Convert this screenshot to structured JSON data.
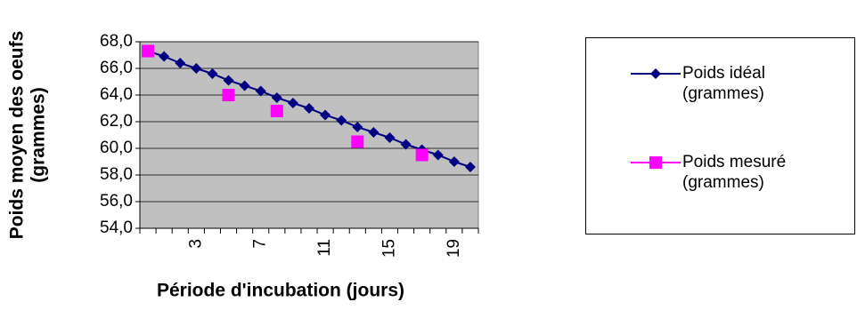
{
  "chart_data": {
    "type": "line",
    "xlabel": "Période d'incubation (jours)",
    "ylabel": [
      "Poids moyen des oeufs",
      "(grammes)"
    ],
    "categories": [
      null,
      null,
      null,
      "3",
      null,
      null,
      null,
      "7",
      null,
      null,
      null,
      "11",
      null,
      null,
      null,
      "15",
      null,
      null,
      null,
      "19",
      null
    ],
    "series": [
      {
        "name": "Poids idéal (grammes)",
        "color": "#000080",
        "marker": "diamond",
        "values": [
          67.3,
          66.9,
          66.4,
          66.0,
          65.6,
          65.1,
          64.7,
          64.3,
          63.8,
          63.4,
          63.0,
          62.5,
          62.1,
          61.6,
          61.2,
          60.8,
          60.3,
          59.9,
          59.5,
          59.0,
          58.6
        ]
      },
      {
        "name": "Poids mesuré (grammes)",
        "color": "#ff00ff",
        "marker": "square",
        "values": [
          67.3,
          null,
          null,
          null,
          null,
          64.0,
          null,
          null,
          62.8,
          null,
          null,
          null,
          null,
          60.5,
          null,
          null,
          null,
          59.5,
          null,
          null,
          null
        ]
      }
    ],
    "ylim": [
      54,
      68
    ],
    "yticks": [
      {
        "value": 54,
        "label": "54,0"
      },
      {
        "value": 56,
        "label": "56,0"
      },
      {
        "value": 58,
        "label": "58,0"
      },
      {
        "value": 60,
        "label": "60,0"
      },
      {
        "value": 62,
        "label": "62,0"
      },
      {
        "value": 64,
        "label": "64,0"
      },
      {
        "value": 66,
        "label": "66,0"
      },
      {
        "value": 68,
        "label": "68,0"
      }
    ],
    "grid": true,
    "legend": "right"
  }
}
